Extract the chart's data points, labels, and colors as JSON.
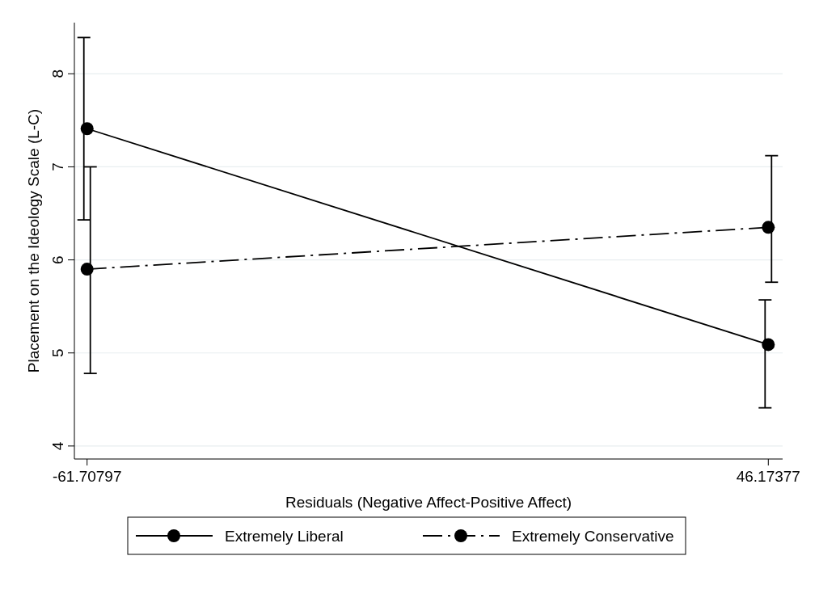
{
  "chart_data": {
    "type": "line",
    "xlabel": "Residuals (Negative Affect-Positive Affect)",
    "ylabel": "Placement on the Ideology Scale (L-C)",
    "x": [
      -61.70797,
      46.17377
    ],
    "series": [
      {
        "name": "Extremely Liberal",
        "color": "#000000",
        "values": [
          7.41,
          5.09
        ],
        "errors": [
          [
            6.43,
            8.39
          ],
          [
            4.41,
            5.57
          ]
        ],
        "line_style": "solid"
      },
      {
        "name": "Extremely Conservative",
        "color": "#000000",
        "values": [
          5.9,
          6.35
        ],
        "errors": [
          [
            4.78,
            7.0
          ],
          [
            5.76,
            7.12
          ]
        ],
        "line_style": "dashed"
      }
    ],
    "xlim": [
      -63.72,
      48.44
    ],
    "xticks": [
      -61.70797,
      46.17377
    ],
    "ylim": [
      3.86,
      8.55
    ],
    "yticks": [
      4,
      5,
      6,
      7,
      8
    ],
    "grid": "y",
    "legend": "bottom",
    "marker": "circle"
  }
}
